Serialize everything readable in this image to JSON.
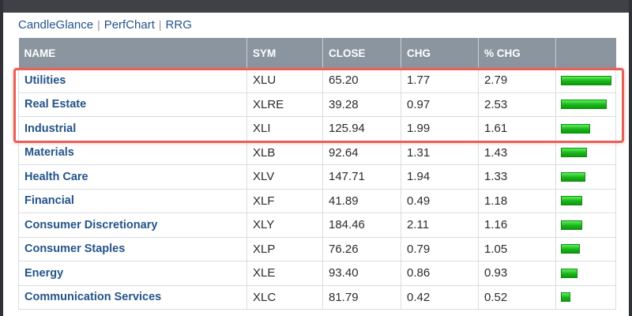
{
  "links": [
    "CandleGlance",
    "PerfChart",
    "RRG"
  ],
  "table": {
    "headers": [
      "NAME",
      "SYM",
      "CLOSE",
      "CHG",
      "% CHG",
      ""
    ],
    "rows": [
      {
        "name": "Utilities",
        "sym": "XLU",
        "close": "65.20",
        "chg": "1.77",
        "pct": "2.79",
        "bar": 2.79
      },
      {
        "name": "Real Estate",
        "sym": "XLRE",
        "close": "39.28",
        "chg": "0.97",
        "pct": "2.53",
        "bar": 2.53
      },
      {
        "name": "Industrial",
        "sym": "XLI",
        "close": "125.94",
        "chg": "1.99",
        "pct": "1.61",
        "bar": 1.61
      },
      {
        "name": "Materials",
        "sym": "XLB",
        "close": "92.64",
        "chg": "1.31",
        "pct": "1.43",
        "bar": 1.43
      },
      {
        "name": "Health Care",
        "sym": "XLV",
        "close": "147.71",
        "chg": "1.94",
        "pct": "1.33",
        "bar": 1.33
      },
      {
        "name": "Financial",
        "sym": "XLF",
        "close": "41.89",
        "chg": "0.49",
        "pct": "1.18",
        "bar": 1.18
      },
      {
        "name": "Consumer Discretionary",
        "sym": "XLY",
        "close": "184.46",
        "chg": "2.11",
        "pct": "1.16",
        "bar": 1.16
      },
      {
        "name": "Consumer Staples",
        "sym": "XLP",
        "close": "76.26",
        "chg": "0.79",
        "pct": "1.05",
        "bar": 1.05
      },
      {
        "name": "Energy",
        "sym": "XLE",
        "close": "93.40",
        "chg": "0.86",
        "pct": "0.93",
        "bar": 0.93
      },
      {
        "name": "Communication Services",
        "sym": "XLC",
        "close": "81.79",
        "chg": "0.42",
        "pct": "0.52",
        "bar": 0.52
      }
    ]
  },
  "colors": {
    "link": "#24548a",
    "header_bg": "#8b959f",
    "bar_green": "#19b519",
    "highlight_border": "#e4625a"
  }
}
